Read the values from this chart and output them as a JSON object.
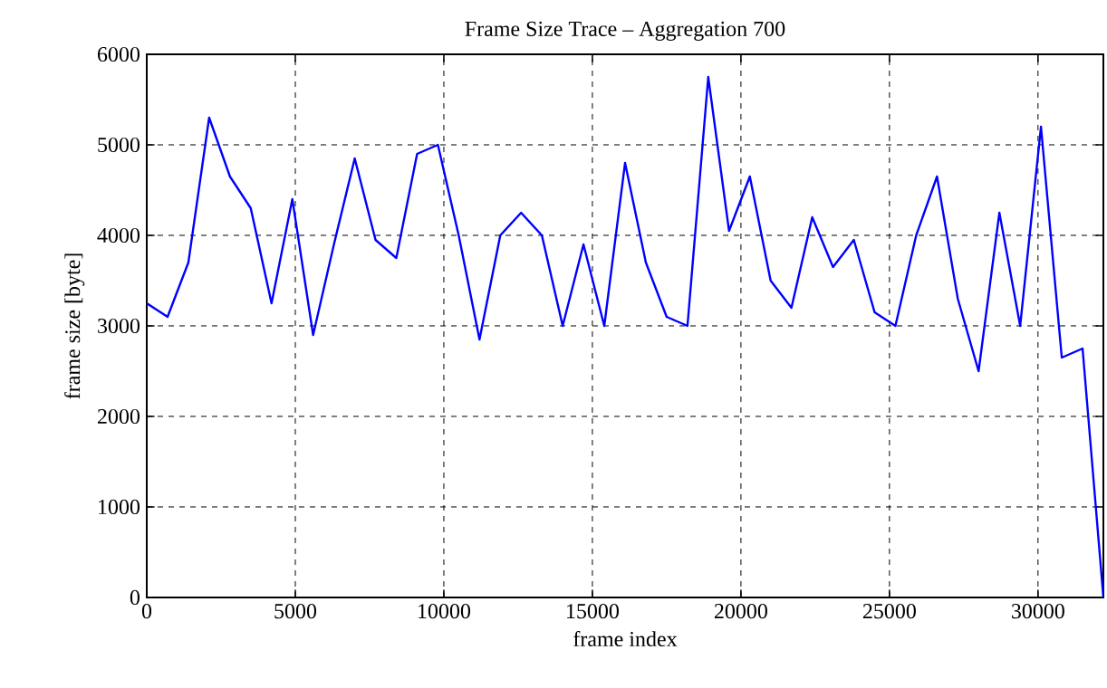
{
  "chart_data": {
    "type": "line",
    "title": "Frame Size Trace – Aggregation 700",
    "xlabel": "frame index",
    "ylabel": "frame size [byte]",
    "xlim": [
      0,
      32200
    ],
    "ylim": [
      0,
      6000
    ],
    "xticks": [
      0,
      5000,
      10000,
      15000,
      20000,
      25000,
      30000
    ],
    "yticks": [
      0,
      1000,
      2000,
      3000,
      4000,
      5000,
      6000
    ],
    "grid": true,
    "marker": "none",
    "line_style": "solid",
    "series": [
      {
        "color": "#0000ff",
        "x": [
          0,
          700,
          1400,
          2100,
          2800,
          3500,
          4200,
          4900,
          5600,
          6300,
          7000,
          7700,
          8400,
          9100,
          9800,
          10500,
          11200,
          11900,
          12600,
          13300,
          14000,
          14700,
          15400,
          16100,
          16800,
          17500,
          18200,
          18900,
          19600,
          20300,
          21000,
          21700,
          22400,
          23100,
          23800,
          24500,
          25200,
          25900,
          26600,
          27300,
          28000,
          28700,
          29400,
          30100,
          30800,
          31500,
          32200
        ],
        "values": [
          3250,
          3100,
          3700,
          5300,
          4650,
          4300,
          3250,
          4400,
          2900,
          3900,
          4850,
          3950,
          3750,
          4900,
          5000,
          4000,
          2850,
          4000,
          4250,
          4000,
          3000,
          3900,
          3000,
          4800,
          3700,
          3100,
          3000,
          5750,
          4050,
          4650,
          3500,
          3200,
          4200,
          3650,
          3950,
          3150,
          3000,
          4000,
          4650,
          3300,
          2500,
          4250,
          3000,
          5200,
          2650,
          2750,
          0
        ]
      }
    ]
  }
}
